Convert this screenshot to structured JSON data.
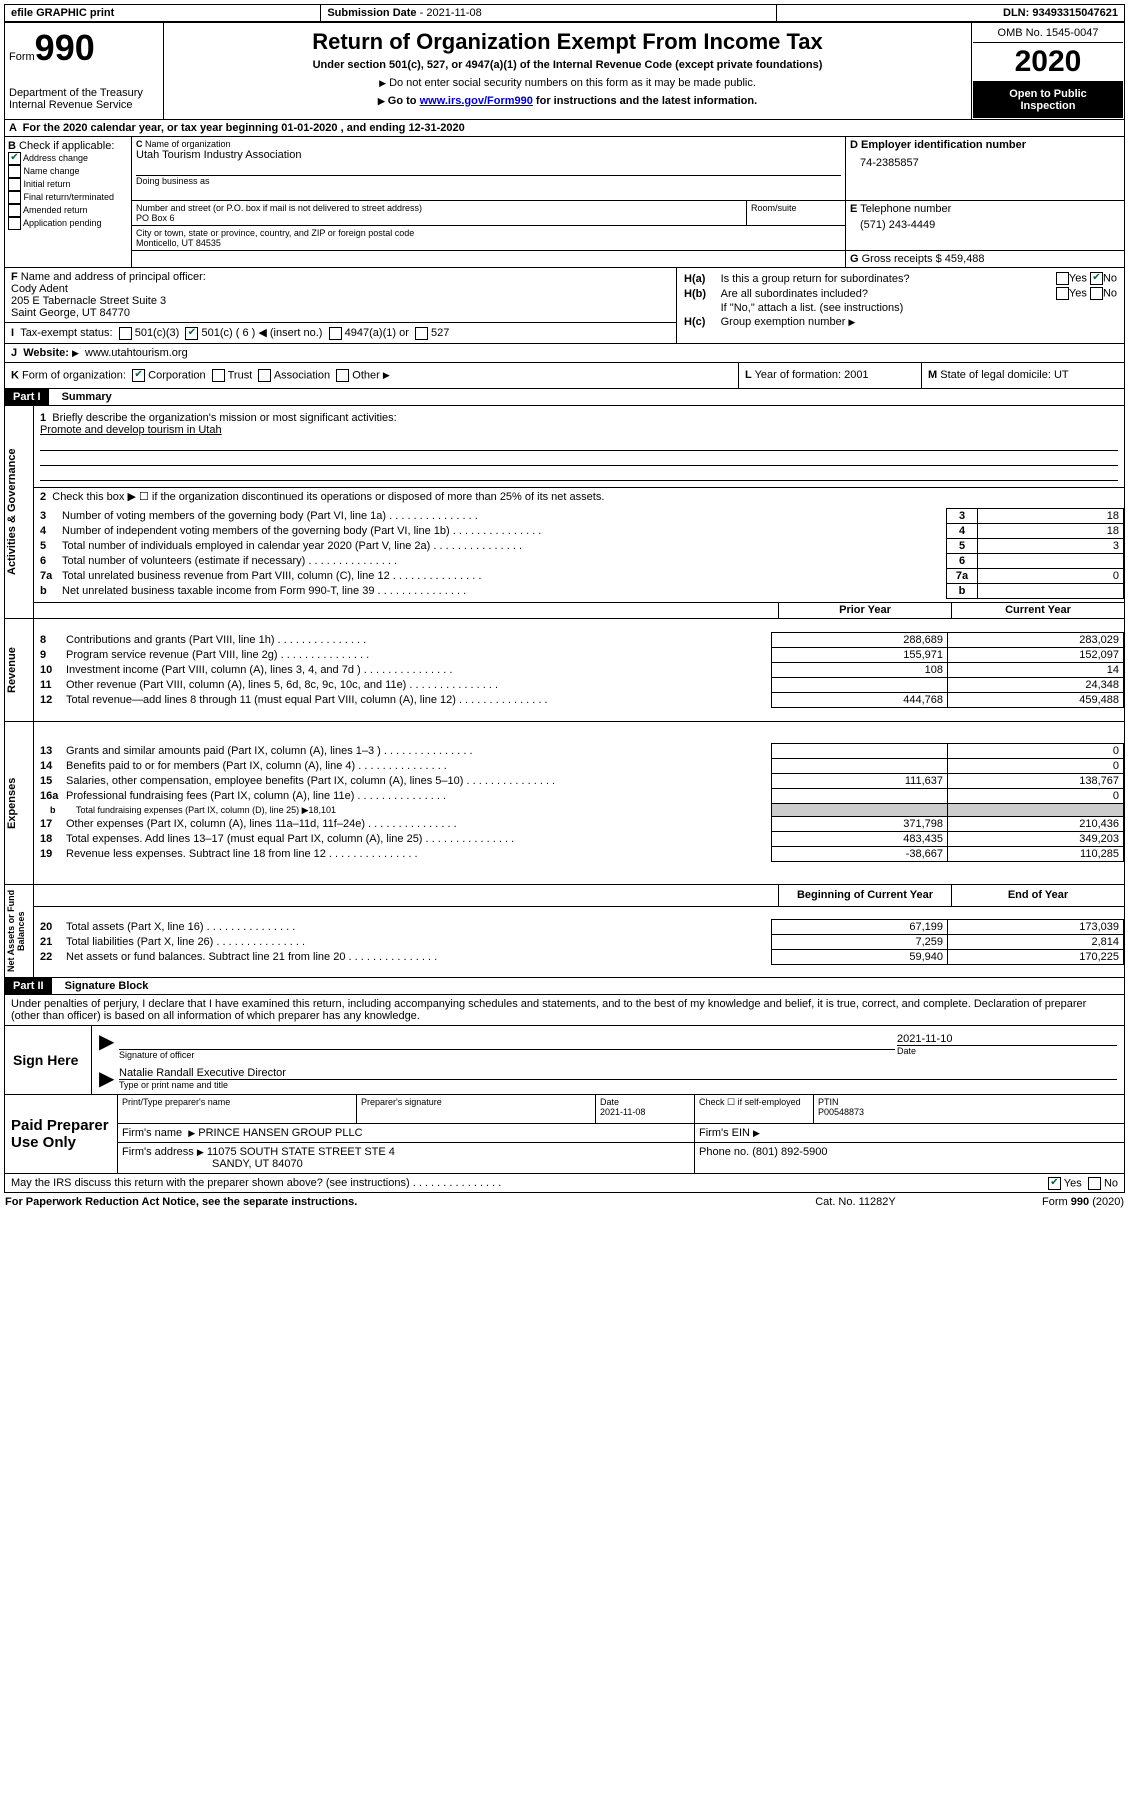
{
  "topbar": {
    "efile": "efile GRAPHIC print",
    "sub_date_label": "Submission Date",
    "sub_date": "2021-11-08",
    "dln_label": "DLN:",
    "dln": "93493315047621"
  },
  "header": {
    "form_word": "Form",
    "form_num": "990",
    "dept": "Department of the Treasury",
    "irs": "Internal Revenue Service",
    "title": "Return of Organization Exempt From Income Tax",
    "subtitle": "Under section 501(c), 527, or 4947(a)(1) of the Internal Revenue Code (except private foundations)",
    "note1": "Do not enter social security numbers on this form as it may be made public.",
    "note2_pre": "Go to ",
    "note2_link": "www.irs.gov/Form990",
    "note2_post": " for instructions and the latest information.",
    "omb_label": "OMB No. 1545-0047",
    "year": "2020",
    "inspect1": "Open to Public",
    "inspect2": "Inspection"
  },
  "periodA": {
    "text_pre": "For the 2020 calendar year, or tax year beginning ",
    "begin": "01-01-2020",
    "mid": " , and ending ",
    "end": "12-31-2020"
  },
  "boxB": {
    "label": "Check if applicable:",
    "opts": [
      "Address change",
      "Name change",
      "Initial return",
      "Final return/terminated",
      "Amended return",
      "Application pending"
    ],
    "checked_idx": 0
  },
  "boxC": {
    "label": "Name of organization",
    "name": "Utah Tourism Industry Association",
    "dba_label": "Doing business as",
    "addr_label": "Number and street (or P.O. box if mail is not delivered to street address)",
    "room_label": "Room/suite",
    "addr": "PO Box 6",
    "city_label": "City or town, state or province, country, and ZIP or foreign postal code",
    "city": "Monticello, UT  84535"
  },
  "boxD": {
    "label": "Employer identification number",
    "val": "74-2385857"
  },
  "boxE": {
    "label": "Telephone number",
    "val": "(571) 243-4449"
  },
  "boxG": {
    "label": "Gross receipts $",
    "val": "459,488"
  },
  "boxF": {
    "label": "Name and address of principal officer:",
    "name": "Cody Adent",
    "addr1": "205 E Tabernacle Street Suite 3",
    "addr2": "Saint George, UT  84770"
  },
  "boxH": {
    "a": "Is this a group return for subordinates?",
    "b": "Are all subordinates included?",
    "b_note": "If \"No,\" attach a list. (see instructions)",
    "c": "Group exemption number"
  },
  "boxI": {
    "label": "Tax-exempt status:",
    "o1": "501(c)(3)",
    "o2": "501(c) ( 6 )",
    "o2_note": "(insert no.)",
    "o3": "4947(a)(1) or",
    "o4": "527"
  },
  "boxJ": {
    "label": "Website:",
    "val": "www.utahtourism.org"
  },
  "boxK": {
    "label": "Form of organization:",
    "opts": [
      "Corporation",
      "Trust",
      "Association",
      "Other"
    ]
  },
  "boxL": {
    "label": "Year of formation:",
    "val": "2001"
  },
  "boxM": {
    "label": "State of legal domicile:",
    "val": "UT"
  },
  "part1": {
    "title": "Part I",
    "name": "Summary",
    "q1": "Briefly describe the organization's mission or most significant activities:",
    "q1_ans": "Promote and develop tourism in Utah",
    "q2": "Check this box ▶ ☐  if the organization discontinued its operations or disposed of more than 25% of its net assets.",
    "side_gov": "Activities & Governance",
    "side_rev": "Revenue",
    "side_exp": "Expenses",
    "side_net": "Net Assets or Fund Balances",
    "col_prior": "Prior Year",
    "col_curr": "Current Year",
    "col_begin": "Beginning of Current Year",
    "col_end": "End of Year",
    "rows_gov": [
      {
        "n": "3",
        "t": "Number of voting members of the governing body (Part VI, line 1a)",
        "v": "18"
      },
      {
        "n": "4",
        "t": "Number of independent voting members of the governing body (Part VI, line 1b)",
        "v": "18"
      },
      {
        "n": "5",
        "t": "Total number of individuals employed in calendar year 2020 (Part V, line 2a)",
        "v": "3"
      },
      {
        "n": "6",
        "t": "Total number of volunteers (estimate if necessary)",
        "v": ""
      },
      {
        "n": "7a",
        "t": "Total unrelated business revenue from Part VIII, column (C), line 12",
        "v": "0"
      },
      {
        "n": "b",
        "t": "Net unrelated business taxable income from Form 990-T, line 39",
        "v": ""
      }
    ],
    "rows_rev": [
      {
        "n": "8",
        "t": "Contributions and grants (Part VIII, line 1h)",
        "p": "288,689",
        "c": "283,029"
      },
      {
        "n": "9",
        "t": "Program service revenue (Part VIII, line 2g)",
        "p": "155,971",
        "c": "152,097"
      },
      {
        "n": "10",
        "t": "Investment income (Part VIII, column (A), lines 3, 4, and 7d )",
        "p": "108",
        "c": "14"
      },
      {
        "n": "11",
        "t": "Other revenue (Part VIII, column (A), lines 5, 6d, 8c, 9c, 10c, and 11e)",
        "p": "",
        "c": "24,348"
      },
      {
        "n": "12",
        "t": "Total revenue—add lines 8 through 11 (must equal Part VIII, column (A), line 12)",
        "p": "444,768",
        "c": "459,488"
      }
    ],
    "rows_exp": [
      {
        "n": "13",
        "t": "Grants and similar amounts paid (Part IX, column (A), lines 1–3 )",
        "p": "",
        "c": "0"
      },
      {
        "n": "14",
        "t": "Benefits paid to or for members (Part IX, column (A), line 4)",
        "p": "",
        "c": "0"
      },
      {
        "n": "15",
        "t": "Salaries, other compensation, employee benefits (Part IX, column (A), lines 5–10)",
        "p": "111,637",
        "c": "138,767"
      },
      {
        "n": "16a",
        "t": "Professional fundraising fees (Part IX, column (A), line 11e)",
        "p": "",
        "c": "0"
      },
      {
        "n": "b",
        "t": "Total fundraising expenses (Part IX, column (D), line 25) ▶18,101",
        "p": null,
        "c": null
      },
      {
        "n": "17",
        "t": "Other expenses (Part IX, column (A), lines 11a–11d, 11f–24e)",
        "p": "371,798",
        "c": "210,436"
      },
      {
        "n": "18",
        "t": "Total expenses. Add lines 13–17 (must equal Part IX, column (A), line 25)",
        "p": "483,435",
        "c": "349,203"
      },
      {
        "n": "19",
        "t": "Revenue less expenses. Subtract line 18 from line 12",
        "p": "-38,667",
        "c": "110,285"
      }
    ],
    "rows_net": [
      {
        "n": "20",
        "t": "Total assets (Part X, line 16)",
        "p": "67,199",
        "c": "173,039"
      },
      {
        "n": "21",
        "t": "Total liabilities (Part X, line 26)",
        "p": "7,259",
        "c": "2,814"
      },
      {
        "n": "22",
        "t": "Net assets or fund balances. Subtract line 21 from line 20",
        "p": "59,940",
        "c": "170,225"
      }
    ]
  },
  "part2": {
    "title": "Part II",
    "name": "Signature Block",
    "decl": "Under penalties of perjury, I declare that I have examined this return, including accompanying schedules and statements, and to the best of my knowledge and belief, it is true, correct, and complete. Declaration of preparer (other than officer) is based on all information of which preparer has any knowledge.",
    "sign_here": "Sign Here",
    "sig_off": "Signature of officer",
    "date": "Date",
    "sig_date": "2021-11-10",
    "officer": "Natalie Randall Executive Director",
    "type_name": "Type or print name and title",
    "paid": "Paid Preparer Use Only",
    "prep_name_label": "Print/Type preparer's name",
    "prep_sig_label": "Preparer's signature",
    "prep_date_label": "Date",
    "prep_date": "2021-11-08",
    "check_self": "Check ☐ if self-employed",
    "ptin_label": "PTIN",
    "ptin": "P00548873",
    "firm_name_label": "Firm's name",
    "firm_name": "PRINCE HANSEN GROUP PLLC",
    "firm_ein_label": "Firm's EIN",
    "firm_addr_label": "Firm's address",
    "firm_addr1": "11075 SOUTH STATE STREET STE 4",
    "firm_addr2": "SANDY, UT  84070",
    "phone_label": "Phone no.",
    "phone": "(801) 892-5900",
    "discuss": "May the IRS discuss this return with the preparer shown above? (see instructions)"
  },
  "footer": {
    "paperwork": "For Paperwork Reduction Act Notice, see the separate instructions.",
    "catno": "Cat. No. 11282Y",
    "formref": "Form 990 (2020)"
  },
  "yn": {
    "yes": "Yes",
    "no": "No"
  }
}
